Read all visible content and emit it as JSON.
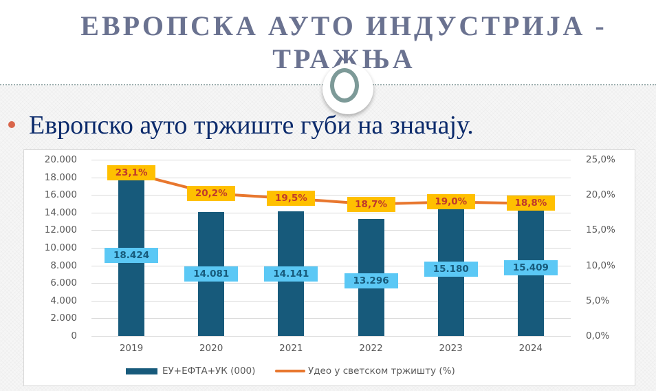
{
  "slide": {
    "title": "ЕВРОПСКА АУТО ИНДУСТРИЈА - ТРАЖЊА",
    "title_line1": "ЕВРОПСКА АУТО ИНДУСТРИЈА -",
    "title_line2": "ТРАЖЊА",
    "bullet": "Европско ауто тржиште губи на значају."
  },
  "colors": {
    "bar": "#175A7B",
    "bar_label_bg": "#5BC8F5",
    "line": "#E8772E",
    "line_label_bg": "#FFC000",
    "line_label_text": "#C0392B",
    "title": "#6A7290",
    "bullet_text": "#0B2A6B"
  },
  "chart_data": {
    "type": "bar",
    "title": "",
    "categories": [
      "2019",
      "2020",
      "2021",
      "2022",
      "2023",
      "2024"
    ],
    "series": [
      {
        "name": "ЕУ+ЕФТА+УК (000)",
        "type": "bar",
        "axis": "left",
        "values": [
          18424,
          14081,
          14141,
          13296,
          15180,
          15409
        ],
        "labels": [
          "18.424",
          "14.081",
          "14.141",
          "13.296",
          "15.180",
          "15.409"
        ]
      },
      {
        "name": "Удео у светском тржишту (%)",
        "type": "line",
        "axis": "right",
        "values": [
          23.1,
          20.2,
          19.5,
          18.7,
          19.0,
          18.8
        ],
        "labels": [
          "23,1%",
          "20,2%",
          "19,5%",
          "18,7%",
          "19,0%",
          "18,8%"
        ]
      }
    ],
    "xlabel": "",
    "ylabel": "",
    "ylim": [
      0,
      20000
    ],
    "y2lim": [
      0,
      25
    ],
    "yticks": [
      "20.000",
      "18.000",
      "16.000",
      "14.000",
      "12.000",
      "10.000",
      "8.000",
      "6.000",
      "4.000",
      "2.000",
      "0"
    ],
    "y2ticks": [
      "25,0%",
      "20,0%",
      "15,0%",
      "10,0%",
      "5,0%",
      "0,0%"
    ],
    "grid": true,
    "legend_position": "bottom",
    "legend": [
      "ЕУ+ЕФТА+УК  (000)",
      "Удео у светском тржишту (%)"
    ]
  }
}
